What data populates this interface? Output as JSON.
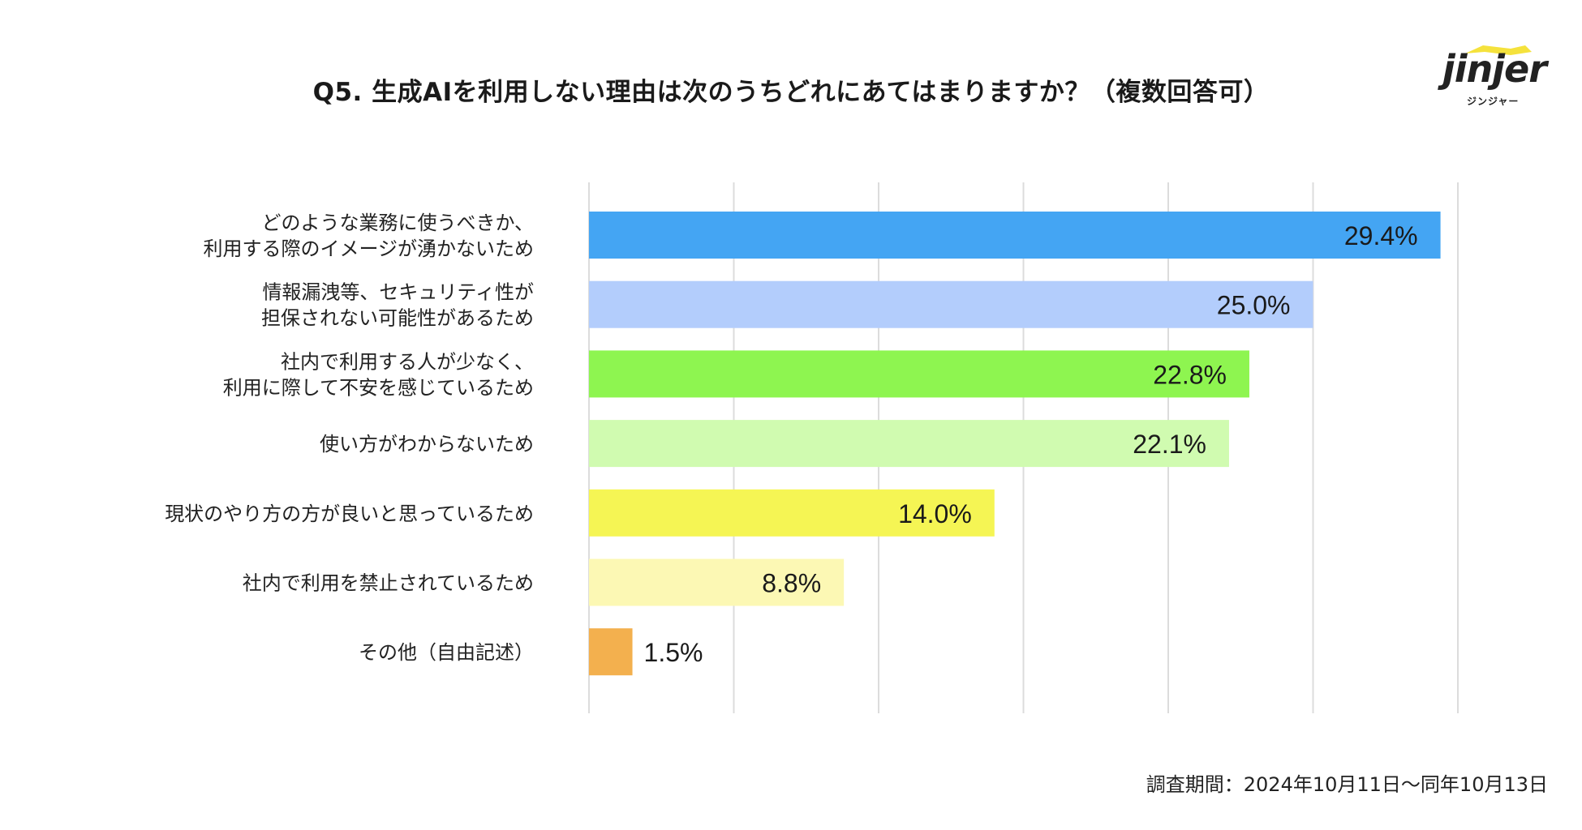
{
  "chart_data": {
    "type": "bar",
    "orientation": "horizontal",
    "title": "Q5. 生成AIを利用しない理由は次のうちどれにあてはまりますか？（複数回答可）",
    "categories": [
      [
        "どのような業務に使うべきか、",
        "利用する際のイメージが湧かないため"
      ],
      [
        "情報漏洩等、セキュリティ性が",
        "担保されない可能性があるため"
      ],
      [
        "社内で利用する人が少なく、",
        "利用に際して不安を感じているため"
      ],
      [
        "使い方がわからないため"
      ],
      [
        "現状のやり方の方が良いと思っているため"
      ],
      [
        "社内で利用を禁止されているため"
      ],
      [
        "その他（自由記述）"
      ]
    ],
    "values": [
      29.4,
      25.0,
      22.8,
      22.1,
      14.0,
      8.8,
      1.5
    ],
    "value_labels": [
      "29.4%",
      "25.0%",
      "22.8%",
      "22.1%",
      "14.0%",
      "8.8%",
      "1.5%"
    ],
    "colors": [
      "#44a5f3",
      "#b3cdfc",
      "#8ef550",
      "#d0fbb0",
      "#f5f554",
      "#fcf8b4",
      "#f3b04e"
    ],
    "xlim": [
      0,
      30
    ],
    "gridlines": [
      0,
      5,
      10,
      15,
      20,
      25,
      30
    ],
    "xlabel": "",
    "ylabel": "",
    "grid": true,
    "legend": "none"
  },
  "logo": {
    "word": "jinjer",
    "kana": "ジンジャー",
    "hat_color": "#f5e23c"
  },
  "footer": {
    "survey_period": "調査期間：2024年10月11日～同年10月13日"
  }
}
